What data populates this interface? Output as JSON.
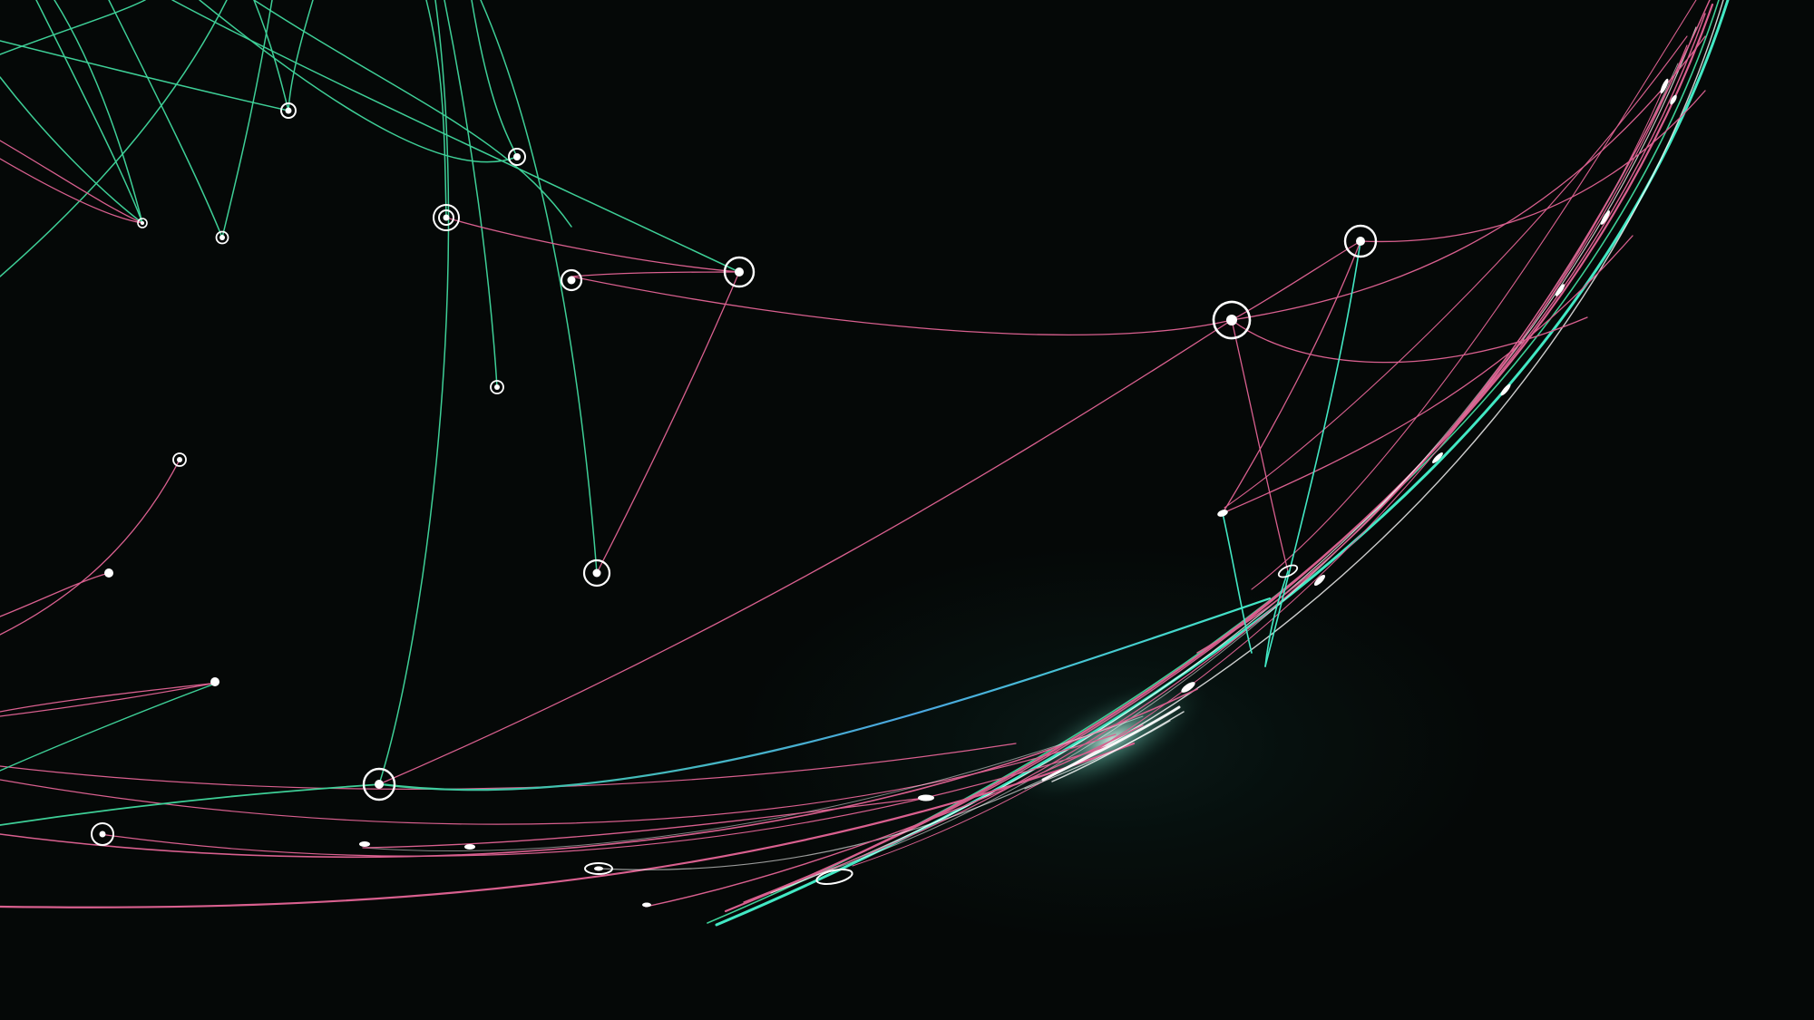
{
  "image": {
    "subject": "abstract-network-graphic",
    "background_color": "#050807",
    "palette": {
      "green": "#3ecf97",
      "pink": "#d9608f",
      "cyan": "#42e8c4",
      "blue": "#4aa6e0",
      "node": "#ffffff"
    }
  }
}
